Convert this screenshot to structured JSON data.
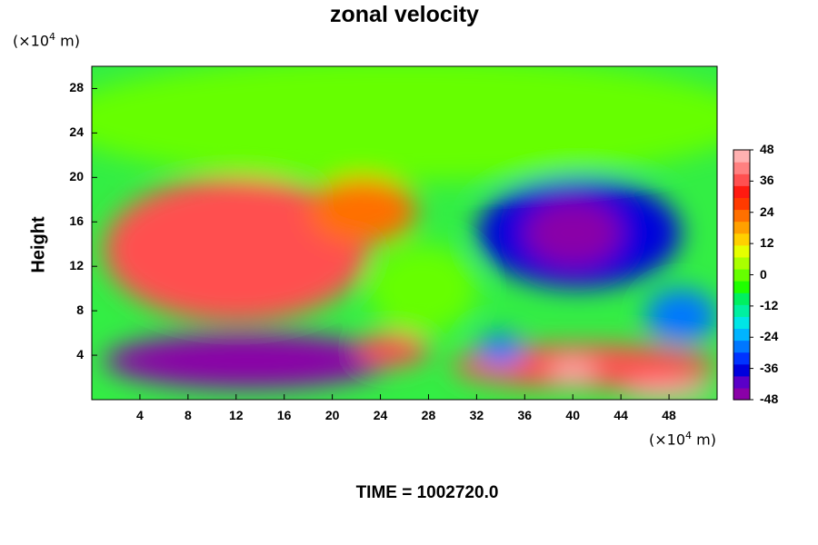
{
  "chart_data": {
    "type": "heatmap",
    "title": "zonal velocity",
    "ylabel": "Height",
    "xlabel": "",
    "x_unit": "(×10⁴ m)",
    "y_unit": "(×10⁴ m)",
    "xlim": [
      0,
      52
    ],
    "ylim": [
      0,
      30
    ],
    "x_ticks": [
      4,
      8,
      12,
      16,
      20,
      24,
      28,
      32,
      36,
      40,
      44,
      48
    ],
    "y_ticks": [
      4,
      8,
      12,
      16,
      20,
      24,
      28
    ],
    "colorbar": {
      "ticks": [
        48,
        36,
        24,
        12,
        0,
        -12,
        -24,
        -36,
        -48
      ],
      "range": [
        -48,
        48
      ],
      "colors": [
        "#8a00a8",
        "#5a00c8",
        "#0000dd",
        "#0033ff",
        "#0077ff",
        "#00b4ff",
        "#00e6e6",
        "#00f0a0",
        "#00f060",
        "#1fff00",
        "#66ff00",
        "#aaff00",
        "#e6ff00",
        "#ffd000",
        "#ffa000",
        "#ff7000",
        "#ff3a00",
        "#ff1a10",
        "#ff5050",
        "#ff8080",
        "#ffb0b0"
      ]
    },
    "features": [
      {
        "x": 0,
        "y": 20.5,
        "w": 52,
        "h": 9.5,
        "value": 0
      },
      {
        "x": 5,
        "y": 8,
        "w": 12,
        "h": 9,
        "value": 50
      },
      {
        "x": 1,
        "y": 7,
        "w": 22,
        "h": 13,
        "value": 36
      },
      {
        "x": 18,
        "y": 14,
        "w": 9,
        "h": 6,
        "value": 22
      },
      {
        "x": 32,
        "y": 10,
        "w": 17,
        "h": 10,
        "value": -40
      },
      {
        "x": 36,
        "y": 12,
        "w": 8,
        "h": 6,
        "value": -48
      },
      {
        "x": 46,
        "y": 5,
        "w": 6,
        "h": 5,
        "value": -30
      },
      {
        "x": 1,
        "y": 1,
        "w": 24,
        "h": 5,
        "value": -46
      },
      {
        "x": 30,
        "y": 1,
        "w": 22,
        "h": 4,
        "value": 38
      },
      {
        "x": 38,
        "y": 1.5,
        "w": 4,
        "h": 2,
        "value": 50
      },
      {
        "x": 44,
        "y": 0,
        "w": 8,
        "h": 1.5,
        "value": 50
      },
      {
        "x": 22,
        "y": 3,
        "w": 6,
        "h": 3,
        "value": 36
      },
      {
        "x": 23,
        "y": 6,
        "w": 9,
        "h": 8,
        "value": 0
      },
      {
        "x": 32,
        "y": 3,
        "w": 4,
        "h": 3,
        "value": -30
      }
    ],
    "grid": false
  },
  "time_label": "TIME = 1002720.0"
}
